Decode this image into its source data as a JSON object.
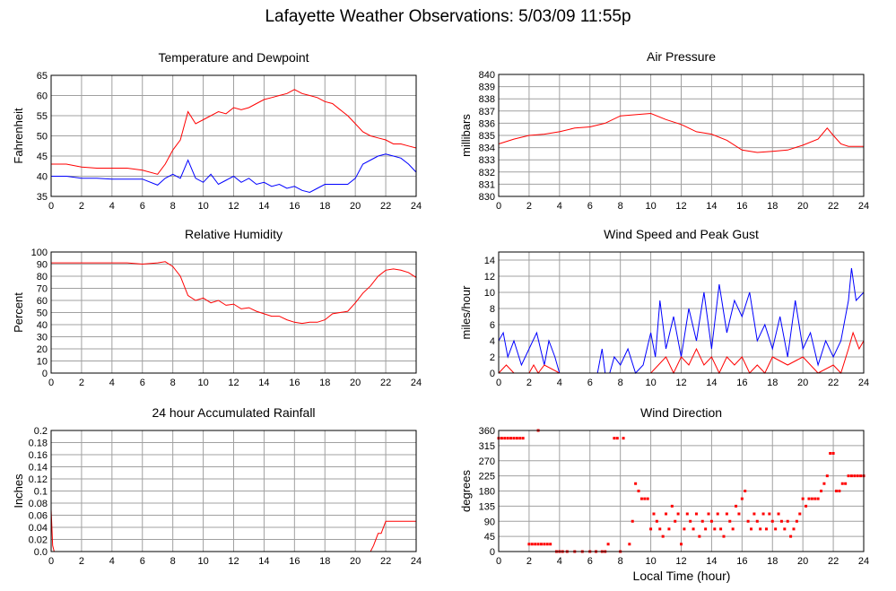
{
  "page": {
    "title": "Lafayette Weather Observations: 5/03/09 11:55p",
    "xlabel": "Local Time (hour)"
  },
  "colors": {
    "red": "#ff0000",
    "blue": "#0000ff",
    "grid": "#a0a0a0",
    "axis": "#000000"
  },
  "chart_data": [
    {
      "id": "temp",
      "type": "line",
      "title": "Temperature and Dewpoint",
      "ylabel": "Fahrenheit",
      "xlim": [
        0,
        24
      ],
      "ylim": [
        35,
        65
      ],
      "xticks": [
        0,
        2,
        4,
        6,
        8,
        10,
        12,
        14,
        16,
        18,
        20,
        22,
        24
      ],
      "yticks": [
        35,
        40,
        45,
        50,
        55,
        60,
        65
      ],
      "series": [
        {
          "color": "red",
          "x": [
            0,
            1,
            2,
            3,
            4,
            5,
            6,
            7,
            7.5,
            8,
            8.5,
            9,
            9.5,
            10,
            10.5,
            11,
            11.5,
            12,
            12.5,
            13,
            13.5,
            14,
            14.5,
            15,
            15.5,
            16,
            16.5,
            17,
            17.5,
            18,
            18.5,
            19,
            19.5,
            20,
            20.5,
            21,
            21.5,
            22,
            22.5,
            23,
            23.5,
            24
          ],
          "y": [
            43,
            43,
            42.3,
            42,
            42,
            42,
            41.5,
            40.5,
            43,
            46.5,
            49,
            56,
            53,
            54,
            55,
            56,
            55.5,
            57,
            56.5,
            57,
            58,
            59,
            59.5,
            60,
            60.5,
            61.5,
            60.5,
            60,
            59.5,
            58.5,
            58,
            56.5,
            55,
            53,
            51,
            50,
            49.5,
            49,
            48,
            48,
            47.5,
            47
          ]
        },
        {
          "color": "blue",
          "x": [
            0,
            1,
            2,
            3,
            4,
            5,
            6,
            7,
            7.5,
            8,
            8.5,
            9,
            9.5,
            10,
            10.5,
            11,
            11.5,
            12,
            12.5,
            13,
            13.5,
            14,
            14.5,
            15,
            15.5,
            16,
            16.5,
            17,
            17.5,
            18,
            18.5,
            19,
            19.5,
            20,
            20.5,
            21,
            21.5,
            22,
            22.5,
            23,
            23.5,
            24
          ],
          "y": [
            40,
            40,
            39.5,
            39.5,
            39.3,
            39.3,
            39.3,
            37.8,
            39.5,
            40.5,
            39.5,
            44,
            39.5,
            38.5,
            40.5,
            38,
            39,
            40,
            38.5,
            39.5,
            38,
            38.5,
            37.5,
            38,
            37,
            37.5,
            36.5,
            36,
            37,
            38,
            38,
            38,
            38,
            39.5,
            43,
            44,
            45,
            45.5,
            45,
            44.5,
            43,
            41
          ]
        }
      ]
    },
    {
      "id": "pressure",
      "type": "line",
      "title": "Air Pressure",
      "ylabel": "millibars",
      "xlim": [
        0,
        24
      ],
      "ylim": [
        830,
        840
      ],
      "xticks": [
        0,
        2,
        4,
        6,
        8,
        10,
        12,
        14,
        16,
        18,
        20,
        22,
        24
      ],
      "yticks": [
        830,
        831,
        832,
        833,
        834,
        835,
        836,
        837,
        838,
        839,
        840
      ],
      "series": [
        {
          "color": "red",
          "x": [
            0,
            1,
            2,
            3,
            4,
            5,
            6,
            7,
            8,
            9,
            10,
            11,
            12,
            13,
            14,
            15,
            16,
            17,
            18,
            19,
            20,
            21,
            21.6,
            22,
            22.5,
            23,
            24
          ],
          "y": [
            834.3,
            834.7,
            835,
            835.1,
            835.3,
            835.6,
            835.7,
            836,
            836.6,
            836.7,
            836.8,
            836.3,
            835.9,
            835.3,
            835.1,
            834.6,
            833.8,
            833.6,
            833.7,
            833.8,
            834.2,
            834.7,
            835.6,
            835.0,
            834.3,
            834.1,
            834.1
          ]
        }
      ]
    },
    {
      "id": "humidity",
      "type": "line",
      "title": "Relative Humidity",
      "ylabel": "Percent",
      "xlim": [
        0,
        24
      ],
      "ylim": [
        0,
        100
      ],
      "xticks": [
        0,
        2,
        4,
        6,
        8,
        10,
        12,
        14,
        16,
        18,
        20,
        22,
        24
      ],
      "yticks": [
        0,
        10,
        20,
        30,
        40,
        50,
        60,
        70,
        80,
        90,
        100
      ],
      "series": [
        {
          "color": "red",
          "x": [
            0,
            1,
            2,
            3,
            4,
            5,
            6,
            7,
            7.5,
            8,
            8.5,
            9,
            9.5,
            10,
            10.5,
            11,
            11.5,
            12,
            12.5,
            13,
            13.5,
            14,
            14.5,
            15,
            15.5,
            16,
            16.5,
            17,
            17.5,
            18,
            18.5,
            19,
            19.5,
            20,
            20.5,
            21,
            21.5,
            22,
            22.5,
            23,
            23.5,
            24
          ],
          "y": [
            91,
            91,
            91,
            91,
            91,
            91,
            90,
            91,
            92,
            88,
            80,
            64,
            60,
            62,
            58,
            60,
            56,
            57,
            53,
            54,
            51,
            49,
            47,
            47,
            44,
            42,
            41,
            42,
            42,
            44,
            49,
            50,
            51,
            58,
            66,
            72,
            80,
            85,
            86,
            85,
            83,
            79
          ]
        }
      ]
    },
    {
      "id": "wind",
      "type": "line",
      "title": "Wind Speed and Peak Gust",
      "ylabel": "miles/hour",
      "xlim": [
        0,
        24
      ],
      "ylim": [
        0,
        15
      ],
      "xticks": [
        0,
        2,
        4,
        6,
        8,
        10,
        12,
        14,
        16,
        18,
        20,
        22,
        24
      ],
      "yticks": [
        0,
        2,
        4,
        6,
        8,
        10,
        12,
        14
      ],
      "series": [
        {
          "color": "blue",
          "x": [
            0,
            0.3,
            0.6,
            1,
            1.5,
            2,
            2.5,
            3,
            3.3,
            3.7,
            4,
            5,
            6,
            6.5,
            6.8,
            7,
            7.3,
            7.6,
            8,
            8.5,
            9,
            9.5,
            10,
            10.3,
            10.6,
            11,
            11.5,
            12,
            12.5,
            13,
            13.5,
            14,
            14.5,
            15,
            15.5,
            16,
            16.5,
            17,
            17.5,
            18,
            18.5,
            19,
            19.5,
            20,
            20.5,
            21,
            21.5,
            22,
            22.5,
            23,
            23.2,
            23.5,
            24
          ],
          "y": [
            4,
            5,
            2,
            4,
            1,
            3,
            5,
            1,
            4,
            2,
            0,
            0,
            0,
            0,
            3,
            0,
            0,
            2,
            1,
            3,
            0,
            1,
            5,
            2,
            9,
            3,
            7,
            2,
            8,
            4,
            10,
            3,
            11,
            5,
            9,
            7,
            10,
            4,
            6,
            3,
            7,
            2,
            9,
            3,
            5,
            1,
            4,
            2,
            4,
            9,
            13,
            9,
            10
          ]
        },
        {
          "color": "red",
          "x": [
            0,
            0.5,
            1,
            2,
            2.3,
            2.6,
            3,
            4,
            6,
            7,
            8,
            9,
            10,
            10.5,
            11,
            11.5,
            12,
            12.5,
            13,
            13.5,
            14,
            14.5,
            15,
            15.5,
            16,
            16.5,
            17,
            17.5,
            18,
            19,
            20,
            21,
            22,
            22.5,
            23,
            23.3,
            23.7,
            24
          ],
          "y": [
            0,
            1,
            0,
            0,
            1,
            0,
            1,
            0,
            0,
            0,
            0,
            0,
            0,
            1,
            2,
            0,
            2,
            1,
            3,
            1,
            2,
            0,
            2,
            1,
            2,
            0,
            1,
            0,
            2,
            1,
            2,
            0,
            1,
            0,
            3,
            5,
            3,
            4
          ]
        }
      ]
    },
    {
      "id": "rain",
      "type": "line",
      "title": "24 hour Accumulated Rainfall",
      "ylabel": "Inches",
      "xlim": [
        0,
        24
      ],
      "ylim": [
        0,
        0.2
      ],
      "xticks": [
        0,
        2,
        4,
        6,
        8,
        10,
        12,
        14,
        16,
        18,
        20,
        22,
        24
      ],
      "yticks": [
        0.0,
        0.02,
        0.04,
        0.06,
        0.08,
        0.1,
        0.12,
        0.14,
        0.16,
        0.18,
        0.2
      ],
      "series": [
        {
          "color": "red",
          "x": [
            0,
            0.1,
            0.2,
            21,
            21.2,
            21.5,
            21.7,
            22,
            24
          ],
          "y": [
            0.07,
            0.01,
            0,
            0,
            0.01,
            0.03,
            0.03,
            0.05,
            0.05
          ]
        }
      ]
    },
    {
      "id": "direction",
      "type": "scatter",
      "title": "Wind Direction",
      "ylabel": "degrees",
      "xlim": [
        0,
        24
      ],
      "ylim": [
        0,
        360
      ],
      "xticks": [
        0,
        2,
        4,
        6,
        8,
        10,
        12,
        14,
        16,
        18,
        20,
        22,
        24
      ],
      "yticks": [
        0,
        45,
        90,
        135,
        180,
        225,
        270,
        315,
        360
      ],
      "series": [
        {
          "color": "red",
          "x": [
            0,
            0.2,
            0.4,
            0.6,
            0.8,
            1.0,
            1.2,
            1.4,
            1.6,
            2.0,
            2.2,
            2.4,
            2.6,
            2.8,
            3.0,
            3.2,
            3.4,
            2.6,
            3.8,
            4.0,
            4.2,
            4.5,
            5,
            5.5,
            6,
            6.4,
            6.8,
            7.0,
            7.2,
            7.6,
            7.8,
            8.0,
            8.2,
            8.6,
            8.8,
            9.0,
            9.2,
            9.4,
            9.6,
            9.8,
            10.0,
            10.2,
            10.4,
            10.6,
            10.8,
            11.0,
            11.2,
            11.4,
            11.6,
            11.8,
            12.0,
            12.2,
            12.4,
            12.6,
            12.8,
            13.0,
            13.2,
            13.4,
            13.6,
            13.8,
            14.0,
            14.2,
            14.4,
            14.6,
            14.8,
            15.0,
            15.2,
            15.4,
            15.6,
            15.8,
            16.0,
            16.2,
            16.4,
            16.6,
            16.8,
            17.0,
            17.2,
            17.4,
            17.6,
            17.8,
            18.0,
            18.2,
            18.4,
            18.6,
            18.8,
            19.0,
            19.2,
            19.4,
            19.6,
            19.8,
            20.0,
            20.2,
            20.4,
            20.6,
            20.8,
            21.0,
            21.2,
            21.4,
            21.6,
            21.8,
            22.0,
            22.2,
            22.4,
            22.6,
            22.8,
            23.0,
            23.2,
            23.4,
            23.6,
            23.8,
            24.0
          ],
          "y": [
            337,
            337,
            337,
            337,
            337,
            337,
            337,
            337,
            337,
            22,
            22,
            22,
            22,
            22,
            22,
            22,
            22,
            360,
            0,
            0,
            0,
            0,
            0,
            0,
            0,
            0,
            0,
            0,
            22,
            337,
            337,
            0,
            337,
            22,
            90,
            202,
            180,
            157,
            157,
            157,
            67,
            112,
            90,
            67,
            45,
            112,
            67,
            135,
            90,
            112,
            22,
            67,
            112,
            90,
            67,
            112,
            45,
            90,
            67,
            112,
            90,
            67,
            112,
            67,
            45,
            112,
            90,
            67,
            135,
            112,
            157,
            180,
            90,
            67,
            112,
            90,
            67,
            112,
            67,
            112,
            90,
            67,
            112,
            90,
            67,
            90,
            45,
            67,
            90,
            112,
            157,
            135,
            157,
            157,
            157,
            157,
            180,
            202,
            225,
            292,
            292,
            180,
            180,
            202,
            202,
            225,
            225,
            225,
            225,
            225,
            225
          ]
        }
      ]
    }
  ]
}
